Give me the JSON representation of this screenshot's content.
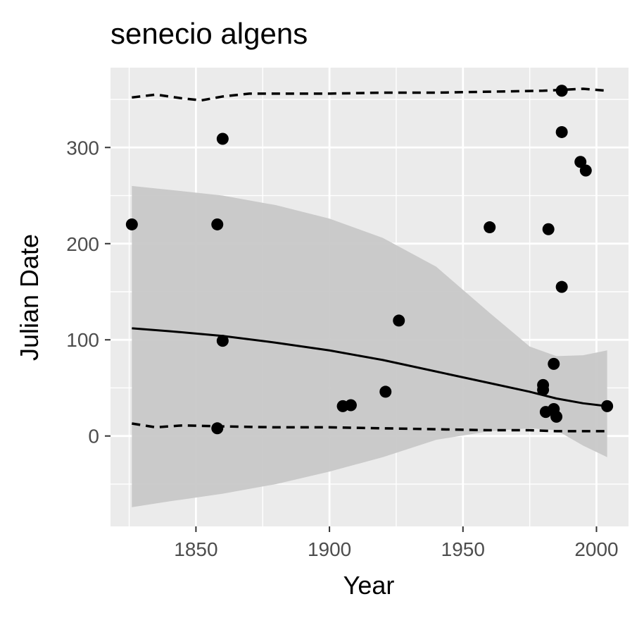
{
  "chart_data": {
    "type": "scatter",
    "title": "senecio algens",
    "xlabel": "Year",
    "ylabel": "Julian Date",
    "xlim": [
      1818,
      2012
    ],
    "ylim": [
      -94,
      383
    ],
    "x_ticks": [
      1850,
      1900,
      1950,
      2000
    ],
    "y_ticks": [
      0,
      100,
      200,
      300
    ],
    "grid": true,
    "colors": {
      "panel_background": "#ebebeb",
      "grid": "#ffffff",
      "points": "#000000",
      "ribbon": "#c8c8c8",
      "fit_line": "#000000"
    },
    "points": [
      {
        "x": 1826,
        "y": 220
      },
      {
        "x": 1858,
        "y": 220
      },
      {
        "x": 1858,
        "y": 8
      },
      {
        "x": 1860,
        "y": 309
      },
      {
        "x": 1860,
        "y": 99
      },
      {
        "x": 1905,
        "y": 31
      },
      {
        "x": 1908,
        "y": 32
      },
      {
        "x": 1921,
        "y": 46
      },
      {
        "x": 1926,
        "y": 120
      },
      {
        "x": 1960,
        "y": 217
      },
      {
        "x": 1980,
        "y": 53
      },
      {
        "x": 1980,
        "y": 48
      },
      {
        "x": 1981,
        "y": 25
      },
      {
        "x": 1982,
        "y": 215
      },
      {
        "x": 1984,
        "y": 75
      },
      {
        "x": 1984,
        "y": 28
      },
      {
        "x": 1985,
        "y": 20
      },
      {
        "x": 1987,
        "y": 359
      },
      {
        "x": 1987,
        "y": 316
      },
      {
        "x": 1987,
        "y": 155
      },
      {
        "x": 1994,
        "y": 285
      },
      {
        "x": 1996,
        "y": 276
      },
      {
        "x": 2004,
        "y": 31
      }
    ],
    "fit": {
      "x": [
        1826,
        1840,
        1860,
        1880,
        1900,
        1920,
        1940,
        1960,
        1975,
        1985,
        1995,
        2004
      ],
      "y": [
        112,
        109,
        104,
        97,
        89,
        79,
        67,
        55,
        46,
        39,
        34,
        31
      ],
      "ci_upper": [
        260,
        256,
        250,
        240,
        226,
        206,
        176,
        128,
        93,
        83,
        84,
        89
      ],
      "ci_lower": [
        -74,
        -68,
        -60,
        -50,
        -37,
        -22,
        -4,
        5,
        8,
        6,
        -10,
        -22
      ]
    },
    "bounds": {
      "upper": {
        "x": [
          1826,
          1835,
          1845,
          1852,
          1860,
          1870,
          1880,
          1900,
          1920,
          1940,
          1960,
          1980,
          1995,
          2004
        ],
        "y": [
          352,
          355,
          351,
          349,
          353,
          356,
          356,
          356,
          357,
          357,
          358,
          359,
          361,
          359
        ]
      },
      "lower": {
        "x": [
          1826,
          1835,
          1845,
          1860,
          1880,
          1900,
          1920,
          1940,
          1960,
          1975,
          1985,
          1995,
          2004
        ],
        "y": [
          13,
          9,
          11,
          10,
          9,
          9,
          8,
          7,
          6,
          6,
          5,
          5,
          5
        ]
      }
    }
  }
}
